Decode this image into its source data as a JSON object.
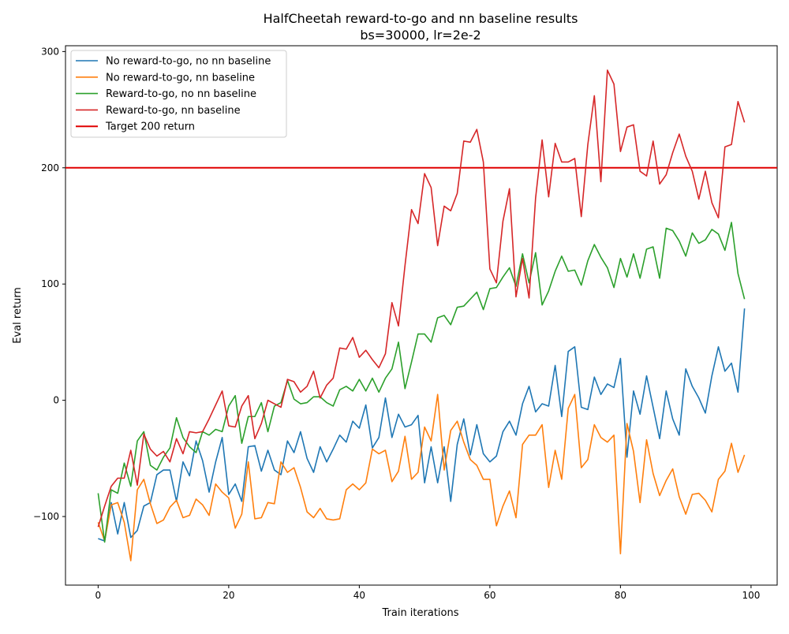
{
  "chart_data": {
    "type": "line",
    "title": "HalfCheetah reward-to-go and nn baseline results",
    "subtitle": "bs=30000, lr=2e-2",
    "xlabel": "Train iterations",
    "ylabel": "Eval return",
    "xlim": [
      -5,
      104
    ],
    "ylim": [
      -159,
      305
    ],
    "xticks": [
      0,
      20,
      40,
      60,
      80,
      100
    ],
    "yticks": [
      -100,
      0,
      100,
      200,
      300
    ],
    "grid": false,
    "legend_position": "top-left",
    "x": [
      0,
      1,
      2,
      3,
      4,
      5,
      6,
      7,
      8,
      9,
      10,
      11,
      12,
      13,
      14,
      15,
      16,
      17,
      18,
      19,
      20,
      21,
      22,
      23,
      24,
      25,
      26,
      27,
      28,
      29,
      30,
      31,
      32,
      33,
      34,
      35,
      36,
      37,
      38,
      39,
      40,
      41,
      42,
      43,
      44,
      45,
      46,
      47,
      48,
      49,
      50,
      51,
      52,
      53,
      54,
      55,
      56,
      57,
      58,
      59,
      60,
      61,
      62,
      63,
      64,
      65,
      66,
      67,
      68,
      69,
      70,
      71,
      72,
      73,
      74,
      75,
      76,
      77,
      78,
      79,
      80,
      81,
      82,
      83,
      84,
      85,
      86,
      87,
      88,
      89,
      90,
      91,
      92,
      93,
      94,
      95,
      96,
      97,
      98,
      99
    ],
    "series": [
      {
        "name": "No reward-to-go, no nn baseline",
        "color": "#1f77b4",
        "values": [
          -119,
          -121,
          -88,
          -115,
          -88,
          -118,
          -112,
          -91,
          -88,
          -64,
          -60,
          -60,
          -87,
          -53,
          -65,
          -35,
          -52,
          -79,
          -53,
          -32,
          -81,
          -72,
          -87,
          -40,
          -39,
          -61,
          -43,
          -60,
          -64,
          -35,
          -45,
          -27,
          -50,
          -62,
          -40,
          -53,
          -42,
          -30,
          -36,
          -18,
          -24,
          -4,
          -41,
          -32,
          2,
          -32,
          -12,
          -23,
          -21,
          -13,
          -71,
          -40,
          -71,
          -40,
          -87,
          -38,
          -16,
          -47,
          -21,
          -46,
          -53,
          -48,
          -27,
          -18,
          -30,
          -3,
          12,
          -10,
          -3,
          -5,
          30,
          -14,
          42,
          46,
          -6,
          -8,
          20,
          5,
          14,
          11,
          36,
          -49,
          8,
          -12,
          21,
          -6,
          -33,
          8,
          -16,
          -30,
          27,
          12,
          2,
          -11,
          21,
          46,
          25,
          32,
          7,
          79
        ]
      },
      {
        "name": "No reward-to-go, nn baseline",
        "color": "#ff7f0e",
        "values": [
          -105,
          -121,
          -90,
          -88,
          -105,
          -138,
          -77,
          -68,
          -89,
          -106,
          -103,
          -92,
          -86,
          -101,
          -99,
          -85,
          -90,
          -99,
          -72,
          -79,
          -84,
          -110,
          -98,
          -53,
          -102,
          -101,
          -88,
          -89,
          -53,
          -62,
          -58,
          -75,
          -96,
          -101,
          -93,
          -102,
          -103,
          -102,
          -77,
          -72,
          -77,
          -71,
          -42,
          -46,
          -43,
          -70,
          -61,
          -31,
          -68,
          -62,
          -23,
          -35,
          5,
          -60,
          -26,
          -18,
          -36,
          -51,
          -56,
          -68,
          -68,
          -108,
          -91,
          -78,
          -101,
          -38,
          -30,
          -30,
          -21,
          -75,
          -43,
          -68,
          -7,
          5,
          -58,
          -51,
          -21,
          -32,
          -36,
          -30,
          -132,
          -20,
          -44,
          -88,
          -34,
          -63,
          -82,
          -69,
          -59,
          -83,
          -98,
          -81,
          -80,
          -86,
          -96,
          -68,
          -61,
          -37,
          -62,
          -47
        ]
      },
      {
        "name": "Reward-to-go, no nn baseline",
        "color": "#2ca02c",
        "values": [
          -80,
          -122,
          -77,
          -80,
          -54,
          -74,
          -35,
          -27,
          -56,
          -60,
          -49,
          -41,
          -15,
          -32,
          -40,
          -45,
          -27,
          -30,
          -25,
          -27,
          -5,
          4,
          -37,
          -14,
          -14,
          -2,
          -27,
          -5,
          -2,
          17,
          1,
          -3,
          -2,
          3,
          3,
          -2,
          -5,
          9,
          12,
          8,
          18,
          8,
          19,
          7,
          19,
          27,
          50,
          10,
          33,
          57,
          57,
          50,
          71,
          73,
          65,
          80,
          81,
          87,
          93,
          78,
          96,
          97,
          106,
          114,
          98,
          126,
          101,
          127,
          82,
          94,
          111,
          124,
          111,
          112,
          99,
          120,
          134,
          123,
          114,
          97,
          122,
          106,
          126,
          105,
          130,
          132,
          105,
          148,
          146,
          137,
          124,
          144,
          135,
          138,
          147,
          143,
          129,
          153,
          109,
          87
        ]
      },
      {
        "name": "Reward-to-go, nn baseline",
        "color": "#d62728",
        "values": [
          -109,
          -91,
          -74,
          -67,
          -67,
          -43,
          -73,
          -29,
          -42,
          -48,
          -44,
          -53,
          -33,
          -46,
          -27,
          -28,
          -27,
          -16,
          -4,
          8,
          -22,
          -23,
          -5,
          4,
          -33,
          -20,
          0,
          -3,
          -6,
          18,
          16,
          7,
          12,
          25,
          2,
          13,
          19,
          45,
          44,
          54,
          37,
          43,
          35,
          28,
          40,
          84,
          64,
          116,
          164,
          152,
          195,
          183,
          133,
          167,
          163,
          178,
          223,
          222,
          233,
          205,
          113,
          101,
          154,
          182,
          89,
          122,
          88,
          174,
          224,
          175,
          221,
          205,
          205,
          208,
          158,
          220,
          262,
          188,
          284,
          272,
          214,
          235,
          237,
          197,
          193,
          223,
          186,
          194,
          213,
          229,
          210,
          197,
          173,
          197,
          170,
          157,
          218,
          220,
          257,
          239
        ]
      }
    ],
    "reference_line": {
      "name": "Target 200 return",
      "y": 200,
      "color": "#e00000"
    }
  }
}
